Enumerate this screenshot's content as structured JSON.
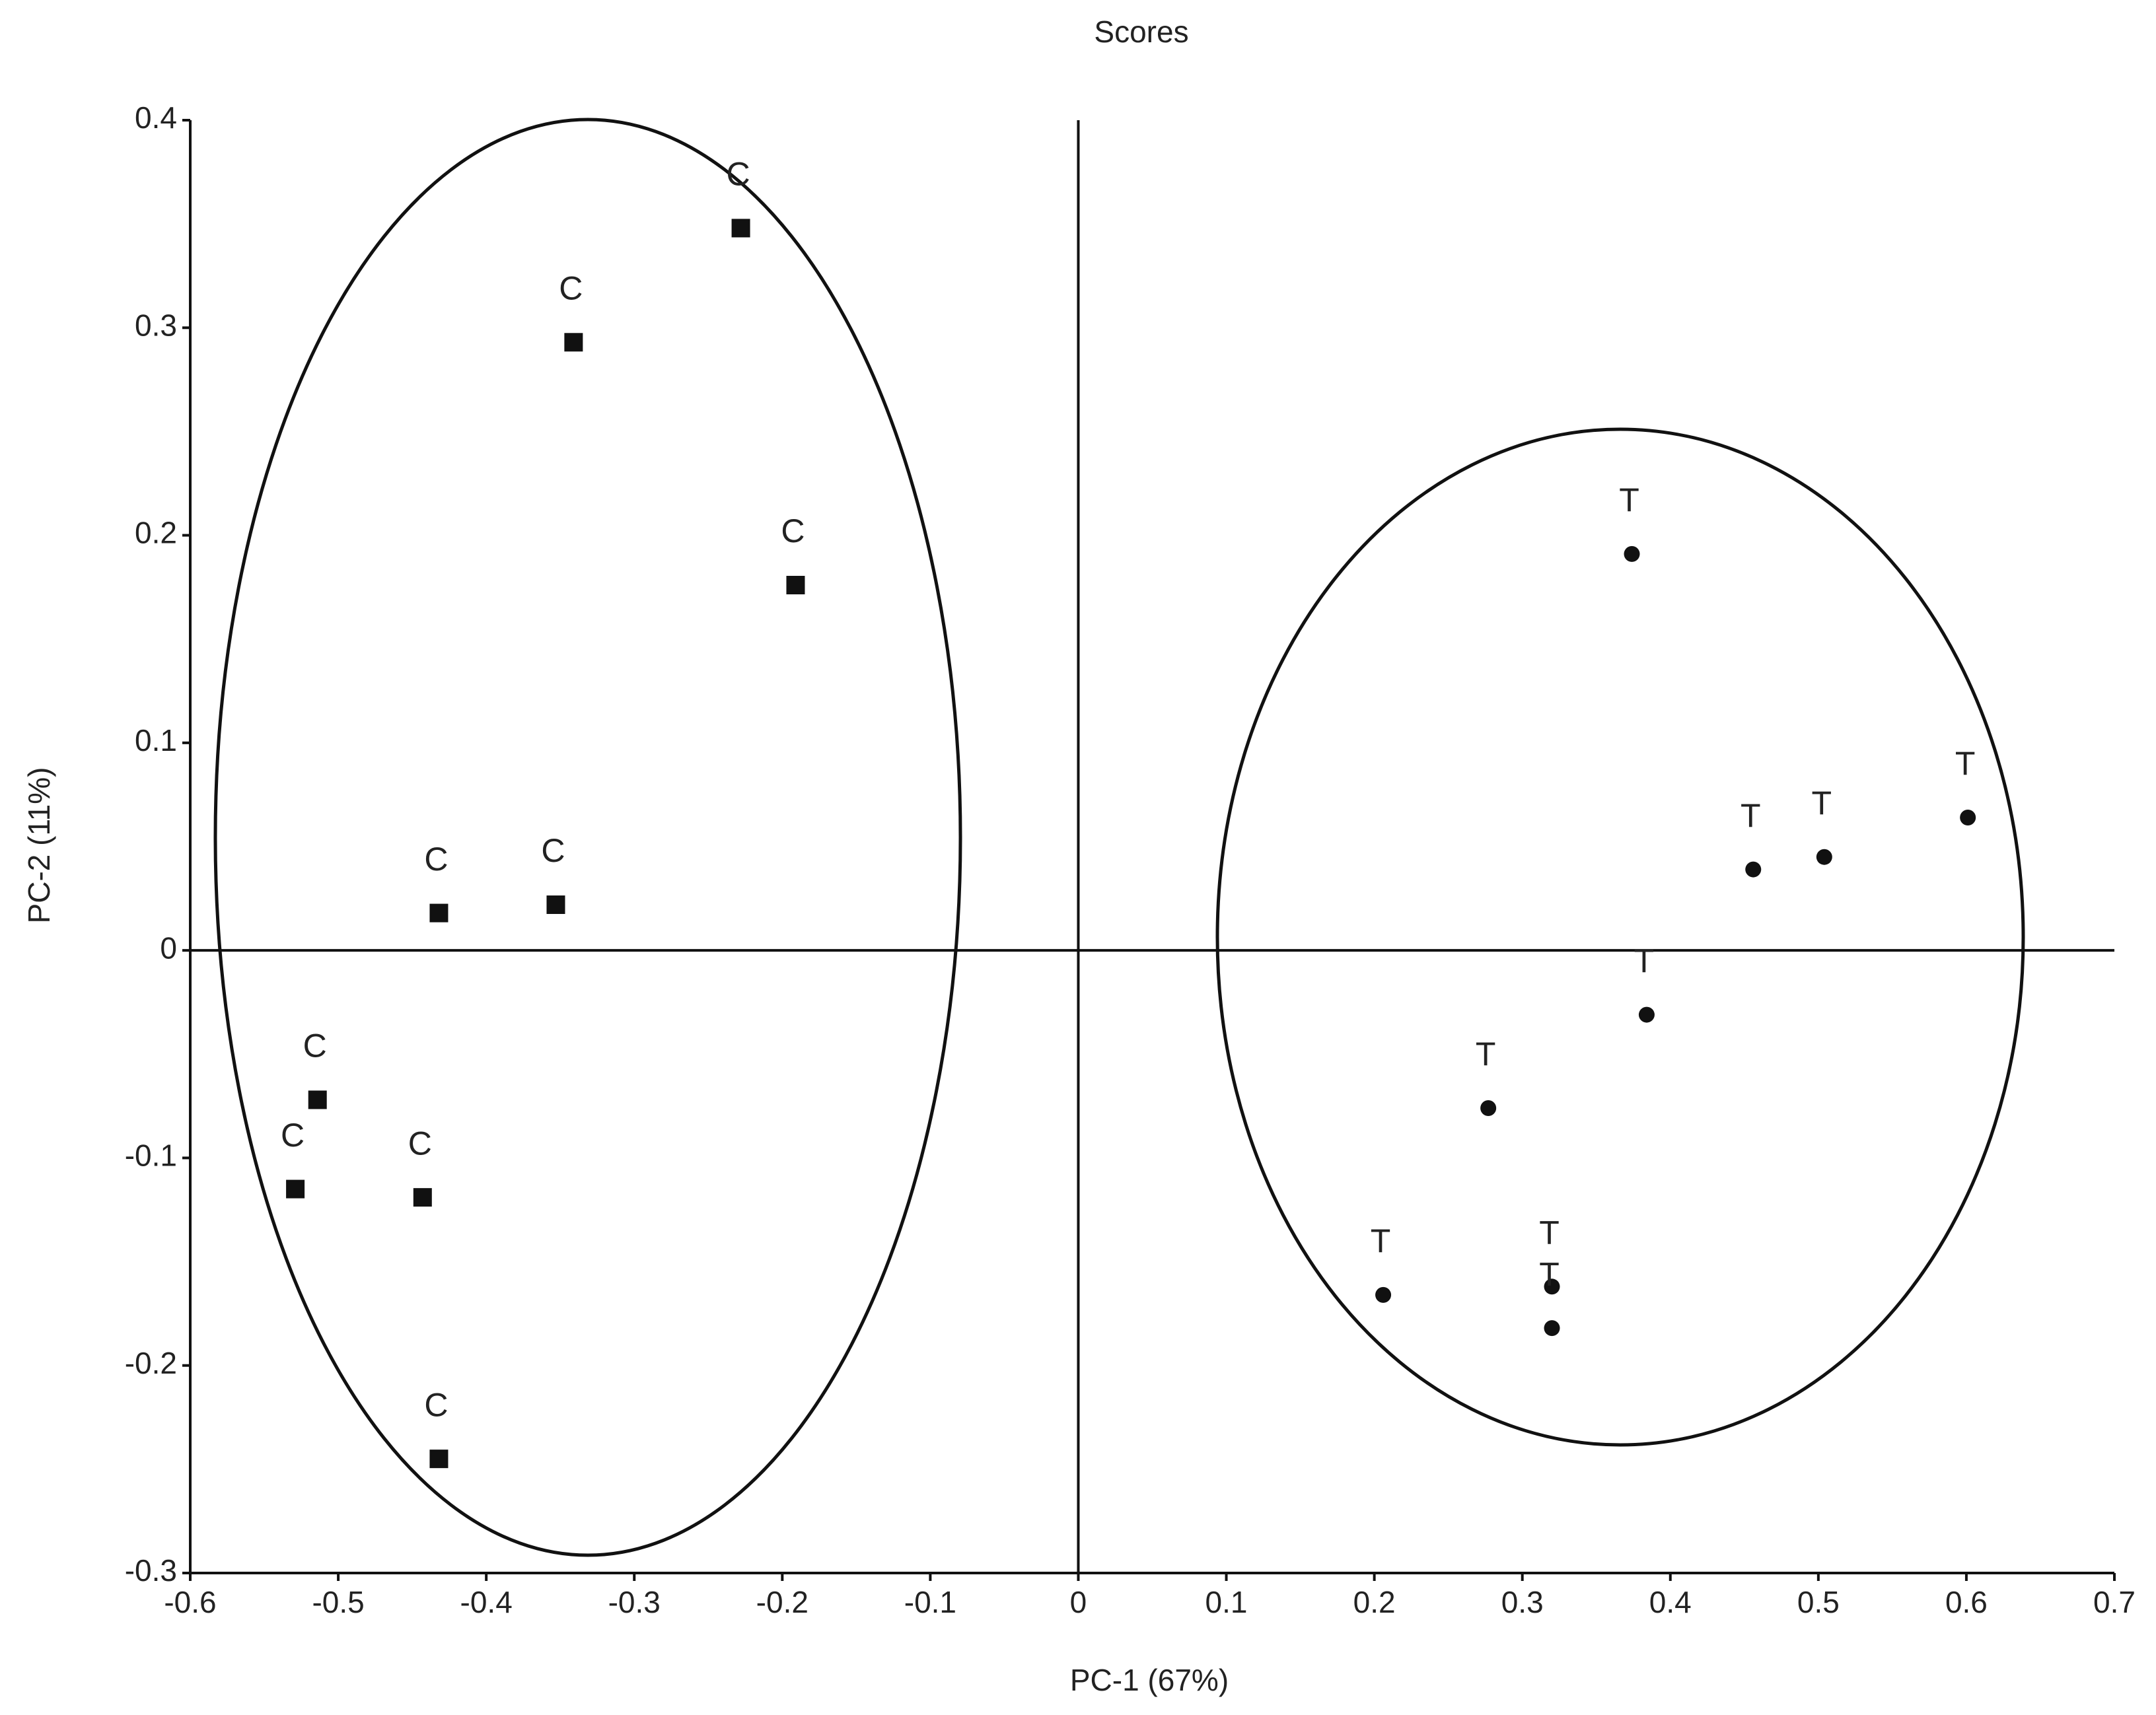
{
  "chart_data": {
    "type": "scatter",
    "title": "Scores",
    "x_label": "PC-1 (67%)",
    "y_label": "PC-2 (11%)",
    "xlim": [
      -0.6,
      0.7
    ],
    "xticks": [
      -0.6,
      -0.5,
      -0.4,
      -0.3,
      -0.2,
      -0.1,
      0,
      0.1,
      0.2,
      0.3,
      0.4,
      0.5,
      0.6,
      0.7
    ],
    "ylim": [
      -0.3,
      0.4
    ],
    "yticks": [
      -0.3,
      -0.2,
      -0.1,
      0,
      0.1,
      0.2,
      0.3,
      0.4
    ],
    "grid": false,
    "series": [
      {
        "marker": "square",
        "color": "#111111",
        "x": [
          -0.228,
          -0.341,
          -0.191,
          -0.432,
          -0.353,
          -0.514,
          -0.529,
          -0.443,
          -0.432
        ],
        "y": [
          0.348,
          0.293,
          0.176,
          0.018,
          0.022,
          -0.072,
          -0.115,
          -0.119,
          -0.245
        ],
        "labels": [
          "C",
          "C",
          "C",
          "C",
          "C",
          "C",
          "C",
          "C",
          "C"
        ]
      },
      {
        "marker": "circle",
        "color": "#111111",
        "x": [
          0.374,
          0.601,
          0.504,
          0.456,
          0.384,
          0.277,
          0.206,
          0.32,
          0.32
        ],
        "y": [
          0.191,
          0.064,
          0.045,
          0.039,
          -0.031,
          -0.076,
          -0.166,
          -0.162,
          -0.182
        ],
        "labels": [
          "T",
          "T",
          "T",
          "T",
          "T",
          "T",
          "T",
          "T",
          "T"
        ]
      }
    ]
  }
}
